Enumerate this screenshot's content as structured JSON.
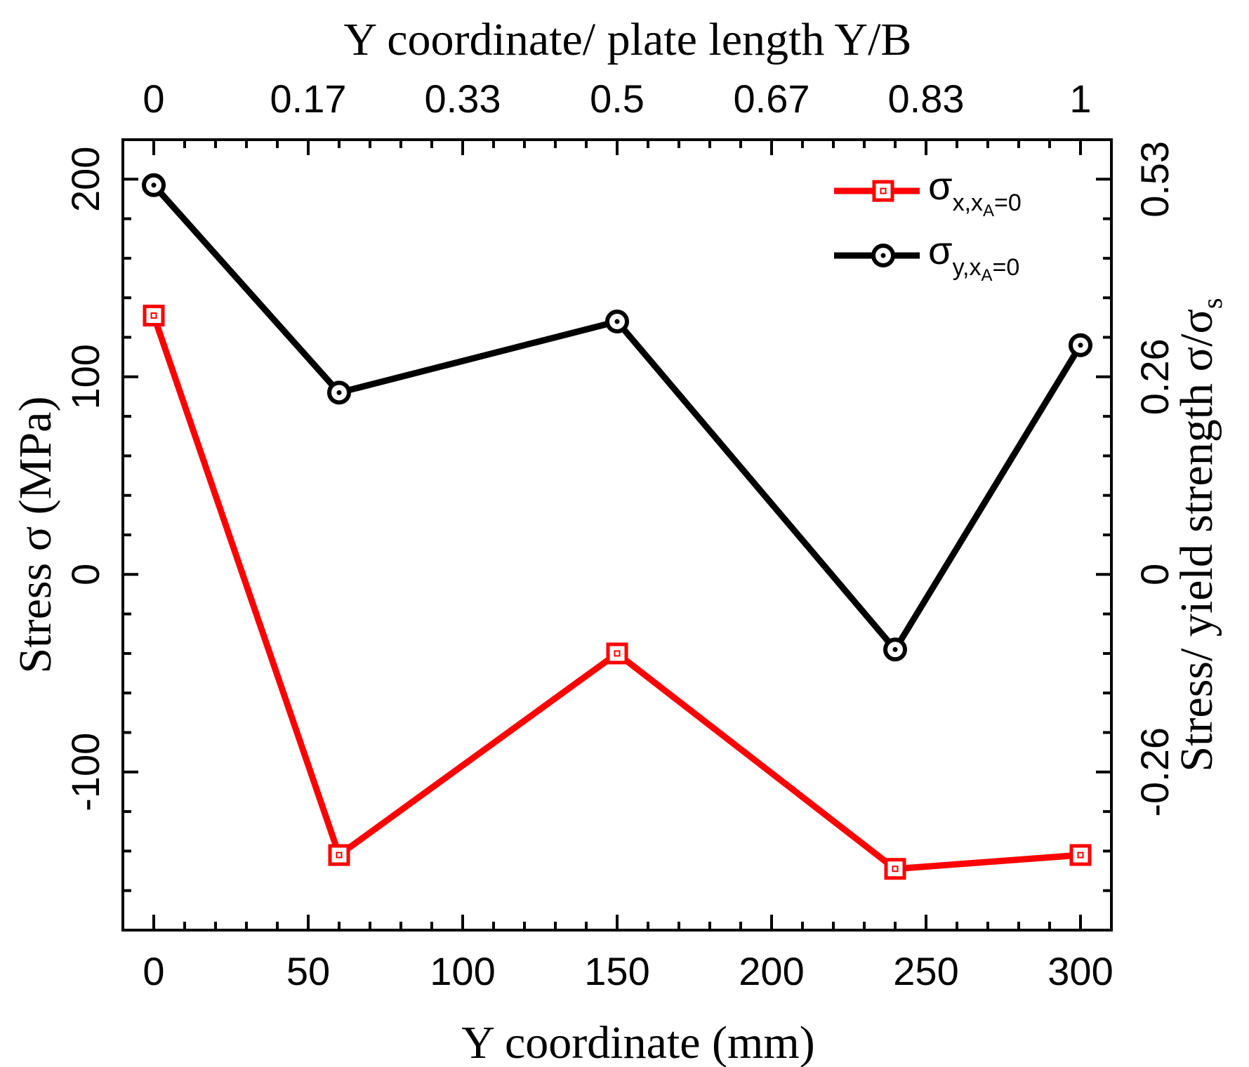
{
  "chart_data": {
    "type": "line",
    "x": [
      0,
      60,
      150,
      240,
      300
    ],
    "series": [
      {
        "name": "σx,xA=0",
        "main": "σ",
        "sub": "x,x",
        "subsub": "A",
        "suffix": "=0",
        "color": "#ff0000",
        "marker": "square",
        "values": [
          131,
          -142,
          -40,
          -149,
          -142
        ]
      },
      {
        "name": "σy,xA=0",
        "main": "σ",
        "sub": "y,x",
        "subsub": "A",
        "suffix": "=0",
        "color": "#000000",
        "marker": "circle",
        "values": [
          197,
          92,
          128,
          -38,
          116
        ]
      }
    ],
    "xlabel": "Y coordinate (mm)",
    "ylabel": "Stress σ (MPa)",
    "top_xlabel": "Y coordinate/ plate length Y/B",
    "right_ylabel_main": "Stress/ yield strength σ/σ",
    "right_ylabel_sub": "s",
    "xlim": [
      -10,
      310
    ],
    "ylim": [
      -180,
      220
    ],
    "xticks": [
      0,
      50,
      100,
      150,
      200,
      250,
      300
    ],
    "yticks": [
      -100,
      0,
      100,
      200
    ],
    "top_ticks": [
      {
        "value": 0,
        "label": "0"
      },
      {
        "value": 50,
        "label": "0.17"
      },
      {
        "value": 100,
        "label": "0.33"
      },
      {
        "value": 150,
        "label": "0.5"
      },
      {
        "value": 200,
        "label": "0.67"
      },
      {
        "value": 250,
        "label": "0.83"
      },
      {
        "value": 300,
        "label": "1"
      }
    ],
    "right_ticks": [
      {
        "value": -100,
        "label": "-0.26"
      },
      {
        "value": 0,
        "label": "0"
      },
      {
        "value": 100,
        "label": "0.26"
      },
      {
        "value": 200,
        "label": "0.53"
      }
    ],
    "legend": "top-right"
  }
}
